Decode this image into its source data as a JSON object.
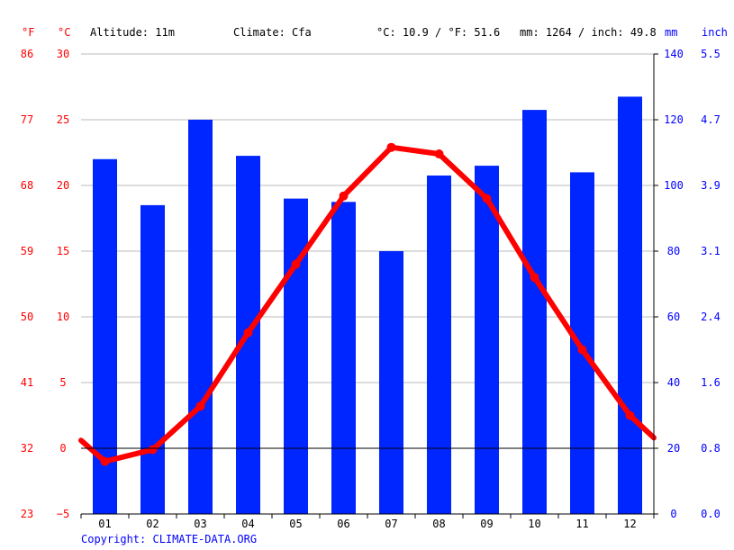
{
  "header": {
    "unit_f": "°F",
    "unit_c": "°C",
    "altitude": "Altitude: 11m",
    "climate": "Climate: Cfa",
    "avg_temp": "°C: 10.9 / °F: 51.6",
    "precip_total": "mm: 1264 / inch: 49.8",
    "unit_mm": "mm",
    "unit_inch": "inch"
  },
  "copyright": "Copyright: CLIMATE-DATA.ORG",
  "colors": {
    "temperature": "#ff0000",
    "precipitation": "#0026ff",
    "grid": "#bbbbbb",
    "zero_line": "#000000"
  },
  "chart_data": {
    "type": "bar",
    "categories": [
      "01",
      "02",
      "03",
      "04",
      "05",
      "06",
      "07",
      "08",
      "09",
      "10",
      "11",
      "12"
    ],
    "series": [
      {
        "kind": "bar",
        "axis": "mm",
        "values": [
          108,
          94,
          120,
          109,
          96,
          95,
          80,
          103,
          106,
          123,
          104,
          127
        ]
      },
      {
        "kind": "line",
        "axis": "celsius",
        "values": [
          -1.0,
          -0.1,
          3.2,
          8.8,
          14.0,
          19.2,
          22.9,
          22.4,
          19.0,
          13.0,
          7.5,
          2.5
        ]
      }
    ],
    "line_edge_values": {
      "start": 0.6,
      "end": 0.8
    },
    "axes": {
      "fahrenheit": {
        "ticks": [
          "86",
          "77",
          "68",
          "59",
          "50",
          "41",
          "32",
          "23"
        ]
      },
      "celsius": {
        "ticks": [
          "30",
          "25",
          "20",
          "15",
          "10",
          "5",
          "0",
          "−5"
        ],
        "ylim": [
          -5,
          30
        ]
      },
      "mm": {
        "ticks": [
          "140",
          "120",
          "100",
          "80",
          "60",
          "40",
          "20",
          "0"
        ],
        "ylim": [
          0,
          140
        ]
      },
      "inch": {
        "ticks": [
          "5.5",
          "4.7",
          "3.9",
          "3.1",
          "2.4",
          "1.6",
          "0.8",
          "0.0"
        ]
      }
    },
    "grid": true
  }
}
